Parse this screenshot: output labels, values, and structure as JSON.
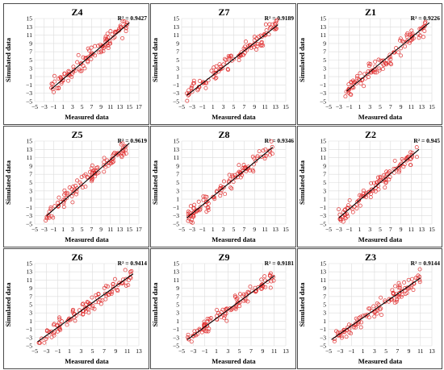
{
  "figure": {
    "x_axis_label": "Measured data",
    "y_axis_label": "Simulated data",
    "point_color": "#e03030",
    "line_color": "#000000",
    "grid_color": "#dcdcdc",
    "r2_prefix": "R² = "
  },
  "chart_data": [
    {
      "type": "scatter",
      "title": "Z4",
      "r2": "0.9427",
      "xlabel": "Measured data",
      "ylabel": "Simulated data",
      "xlim": [
        -5,
        17
      ],
      "ylim": [
        -5,
        15
      ],
      "x_ticks": [
        "−5",
        "−3",
        "−1",
        "1",
        "3",
        "5",
        "7",
        "9",
        "11",
        "13",
        "15",
        "17"
      ],
      "y_ticks": [
        "−5",
        "−3",
        "−1",
        "1",
        "3",
        "5",
        "7",
        "9",
        "11",
        "13",
        "15"
      ],
      "fit": {
        "x": [
          -1.5,
          15
        ],
        "y": [
          -2.0,
          14.0
        ]
      },
      "points_range": [
        -1.8,
        14.5
      ],
      "grid": true,
      "legend": "none"
    },
    {
      "type": "scatter",
      "title": "Z7",
      "r2": "0.9189",
      "xlabel": "Measured data",
      "ylabel": "Simulated data",
      "xlim": [
        -5,
        15
      ],
      "ylim": [
        -5,
        15
      ],
      "x_ticks": [
        "−5",
        "−3",
        "−1",
        "1",
        "3",
        "5",
        "7",
        "9",
        "11",
        "13",
        "15"
      ],
      "y_ticks": [
        "−5",
        "−3",
        "−1",
        "1",
        "3",
        "5",
        "7",
        "9",
        "11",
        "13",
        "15"
      ],
      "fit": {
        "x": [
          -4,
          13.5
        ],
        "y": [
          -3.5,
          13.5
        ]
      },
      "points_range": [
        -4,
        13.5
      ],
      "grid": true,
      "legend": "none"
    },
    {
      "type": "scatter",
      "title": "Z1",
      "r2": "0.9226",
      "xlabel": "Measured data",
      "ylabel": "Simulated data",
      "xlim": [
        -5,
        15
      ],
      "ylim": [
        -5,
        15
      ],
      "x_ticks": [
        "−5",
        "−3",
        "−1",
        "1",
        "3",
        "5",
        "7",
        "9",
        "11",
        "13",
        "15"
      ],
      "y_ticks": [
        "−5",
        "−3",
        "−1",
        "1",
        "3",
        "5",
        "7",
        "9",
        "11",
        "13",
        "15"
      ],
      "fit": {
        "x": [
          -1.5,
          14.5
        ],
        "y": [
          -2.5,
          14.0
        ]
      },
      "points_range": [
        -2,
        14.2
      ],
      "grid": true,
      "legend": "none"
    },
    {
      "type": "scatter",
      "title": "Z5",
      "r2": "0.9619",
      "xlabel": "Measured data",
      "ylabel": "Simulated data",
      "xlim": [
        -5,
        17
      ],
      "ylim": [
        -5,
        15
      ],
      "x_ticks": [
        "−5",
        "−3",
        "−1",
        "1",
        "3",
        "5",
        "7",
        "9",
        "11",
        "13",
        "15",
        "17"
      ],
      "y_ticks": [
        "−5",
        "−3",
        "−1",
        "1",
        "3",
        "5",
        "7",
        "9",
        "11",
        "13",
        "15"
      ],
      "fit": {
        "x": [
          -2.5,
          15
        ],
        "y": [
          -3.0,
          14.5
        ]
      },
      "points_range": [
        -3,
        14.5
      ],
      "grid": true,
      "legend": "none"
    },
    {
      "type": "scatter",
      "title": "Z8",
      "r2": "0.9346",
      "xlabel": "Measured data",
      "ylabel": "Simulated data",
      "xlim": [
        -5,
        15
      ],
      "ylim": [
        -5,
        15
      ],
      "x_ticks": [
        "−5",
        "−3",
        "−1",
        "1",
        "3",
        "5",
        "7",
        "9",
        "11",
        "13",
        "15"
      ],
      "y_ticks": [
        "−5",
        "−3",
        "−1",
        "1",
        "3",
        "5",
        "7",
        "9",
        "11",
        "13",
        "15"
      ],
      "fit": {
        "x": [
          -4,
          12.5
        ],
        "y": [
          -3.5,
          13.5
        ]
      },
      "points_range": [
        -4,
        12.5
      ],
      "grid": true,
      "legend": "none"
    },
    {
      "type": "scatter",
      "title": "Z2",
      "r2": "0.945",
      "xlabel": "Measured data",
      "ylabel": "Simulated data",
      "xlim": [
        -5,
        15
      ],
      "ylim": [
        -5,
        15
      ],
      "x_ticks": [
        "−5",
        "−3",
        "−1",
        "1",
        "3",
        "5",
        "7",
        "9",
        "11",
        "13",
        "15"
      ],
      "y_ticks": [
        "−5",
        "−3",
        "−1",
        "1",
        "3",
        "5",
        "7",
        "9",
        "11",
        "13",
        "15"
      ],
      "fit": {
        "x": [
          -3,
          12.5
        ],
        "y": [
          -3.5,
          13.0
        ]
      },
      "points_range": [
        -3.5,
        12.5
      ],
      "grid": true,
      "legend": "none"
    },
    {
      "type": "scatter",
      "title": "Z6",
      "r2": "0.9414",
      "xlabel": "Measured data",
      "ylabel": "Simulated data",
      "xlim": [
        -5,
        13
      ],
      "ylim": [
        -5,
        15
      ],
      "x_ticks": [
        "−5",
        "−3",
        "−1",
        "1",
        "3",
        "5",
        "7",
        "9",
        "11",
        "13"
      ],
      "y_ticks": [
        "−5",
        "−3",
        "−1",
        "1",
        "3",
        "5",
        "7",
        "9",
        "11",
        "13",
        "15"
      ],
      "fit": {
        "x": [
          -4.5,
          12
        ],
        "y": [
          -4.0,
          12.5
        ]
      },
      "points_range": [
        -4.5,
        12
      ],
      "grid": true,
      "legend": "none"
    },
    {
      "type": "scatter",
      "title": "Z9",
      "r2": "0.9181",
      "xlabel": "Measured data",
      "ylabel": "Simulated data",
      "xlim": [
        -5,
        13
      ],
      "ylim": [
        -5,
        15
      ],
      "x_ticks": [
        "−5",
        "−3",
        "−1",
        "1",
        "3",
        "5",
        "7",
        "9",
        "11",
        "13"
      ],
      "y_ticks": [
        "−5",
        "−3",
        "−1",
        "1",
        "3",
        "5",
        "7",
        "9",
        "11",
        "13",
        "15"
      ],
      "fit": {
        "x": [
          -4,
          11
        ],
        "y": [
          -3.5,
          12.0
        ]
      },
      "points_range": [
        -4,
        11
      ],
      "grid": true,
      "legend": "none"
    },
    {
      "type": "scatter",
      "title": "Z3",
      "r2": "0.9144",
      "xlabel": "Measured data",
      "ylabel": "Simulated data",
      "xlim": [
        -5,
        13
      ],
      "ylim": [
        -5,
        15
      ],
      "x_ticks": [
        "−5",
        "−3",
        "−1",
        "1",
        "3",
        "5",
        "7",
        "9",
        "11",
        "13"
      ],
      "y_ticks": [
        "−5",
        "−3",
        "−1",
        "1",
        "3",
        "5",
        "7",
        "9",
        "11",
        "13",
        "15"
      ],
      "fit": {
        "x": [
          -4.5,
          11
        ],
        "y": [
          -3.5,
          11.5
        ]
      },
      "points_range": [
        -4,
        11
      ],
      "grid": true,
      "legend": "none"
    }
  ]
}
